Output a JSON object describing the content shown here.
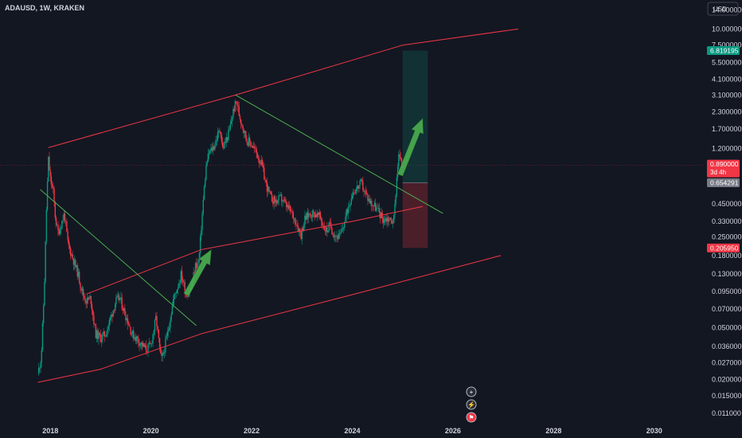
{
  "header": {
    "symbol_line": "ADAUSD, 1W, KRAKEN",
    "currency_button": "USD"
  },
  "price_axis": {
    "ticks": [
      {
        "label": "14.000000",
        "value": 14.0
      },
      {
        "label": "10.000000",
        "value": 10.0
      },
      {
        "label": "7.500000",
        "value": 7.5
      },
      {
        "label": "5.500000",
        "value": 5.5
      },
      {
        "label": "4.100000",
        "value": 4.1
      },
      {
        "label": "3.100000",
        "value": 3.1
      },
      {
        "label": "2.300000",
        "value": 2.3
      },
      {
        "label": "1.700000",
        "value": 1.7
      },
      {
        "label": "1.200000",
        "value": 1.2
      },
      {
        "label": "0.450000",
        "value": 0.45
      },
      {
        "label": "0.330000",
        "value": 0.33
      },
      {
        "label": "0.250000",
        "value": 0.25
      },
      {
        "label": "0.180000",
        "value": 0.18
      },
      {
        "label": "0.130000",
        "value": 0.13
      },
      {
        "label": "0.095000",
        "value": 0.095
      },
      {
        "label": "0.070000",
        "value": 0.07
      },
      {
        "label": "0.050000",
        "value": 0.05
      },
      {
        "label": "0.036000",
        "value": 0.036
      },
      {
        "label": "0.027000",
        "value": 0.027
      },
      {
        "label": "0.020000",
        "value": 0.02
      },
      {
        "label": "0.015000",
        "value": 0.015
      },
      {
        "label": "0.011000",
        "value": 0.011
      }
    ],
    "tags": [
      {
        "name": "target-price-tag",
        "label": "6.819195",
        "sub": "",
        "color": "#089981",
        "value": 6.819195
      },
      {
        "name": "current-price-tag",
        "label": "0.890000",
        "sub": "3d 4h",
        "color": "#f23645",
        "value": 0.89
      },
      {
        "name": "entry-price-tag",
        "label": "0.654291",
        "sub": "",
        "color": "#787b86",
        "value": 0.654291
      },
      {
        "name": "stop-price-tag",
        "label": "0.205950",
        "sub": "",
        "color": "#f23645",
        "value": 0.20595
      }
    ]
  },
  "time_axis": {
    "ticks": [
      {
        "label": "2018",
        "year": 2018
      },
      {
        "label": "2020",
        "year": 2020
      },
      {
        "label": "2022",
        "year": 2022
      },
      {
        "label": "2024",
        "year": 2024
      },
      {
        "label": "2026",
        "year": 2026
      },
      {
        "label": "2028",
        "year": 2028
      },
      {
        "label": "2030",
        "year": 2030
      }
    ]
  },
  "chart_data": {
    "type": "candlestick",
    "symbol": "ADAUSD",
    "interval": "1W",
    "exchange": "KRAKEN",
    "y_scale": "log",
    "x_range": [
      2017.0,
      2031.0
    ],
    "y_range": [
      0.0094,
      16.7
    ],
    "up_color": "#089981",
    "down_color": "#f23645",
    "close_path": [
      [
        2017.75,
        0.022
      ],
      [
        2017.82,
        0.03
      ],
      [
        2017.88,
        0.1
      ],
      [
        2017.92,
        0.38
      ],
      [
        2017.96,
        1.0
      ],
      [
        2018.0,
        0.7
      ],
      [
        2018.06,
        0.55
      ],
      [
        2018.1,
        0.35
      ],
      [
        2018.15,
        0.27
      ],
      [
        2018.2,
        0.3
      ],
      [
        2018.28,
        0.38
      ],
      [
        2018.35,
        0.22
      ],
      [
        2018.45,
        0.17
      ],
      [
        2018.55,
        0.13
      ],
      [
        2018.65,
        0.09
      ],
      [
        2018.72,
        0.08
      ],
      [
        2018.8,
        0.085
      ],
      [
        2018.9,
        0.045
      ],
      [
        2019.0,
        0.042
      ],
      [
        2019.1,
        0.045
      ],
      [
        2019.2,
        0.06
      ],
      [
        2019.3,
        0.08
      ],
      [
        2019.38,
        0.085
      ],
      [
        2019.45,
        0.07
      ],
      [
        2019.55,
        0.055
      ],
      [
        2019.62,
        0.045
      ],
      [
        2019.7,
        0.042
      ],
      [
        2019.8,
        0.038
      ],
      [
        2019.9,
        0.034
      ],
      [
        2020.0,
        0.037
      ],
      [
        2020.1,
        0.06
      ],
      [
        2020.2,
        0.028
      ],
      [
        2020.25,
        0.032
      ],
      [
        2020.35,
        0.05
      ],
      [
        2020.45,
        0.085
      ],
      [
        2020.55,
        0.11
      ],
      [
        2020.6,
        0.13
      ],
      [
        2020.7,
        0.09
      ],
      [
        2020.8,
        0.1
      ],
      [
        2020.88,
        0.15
      ],
      [
        2020.95,
        0.16
      ],
      [
        2021.0,
        0.3
      ],
      [
        2021.05,
        0.55
      ],
      [
        2021.1,
        0.9
      ],
      [
        2021.15,
        1.1
      ],
      [
        2021.25,
        1.25
      ],
      [
        2021.32,
        1.5
      ],
      [
        2021.38,
        1.7
      ],
      [
        2021.42,
        1.2
      ],
      [
        2021.48,
        1.35
      ],
      [
        2021.55,
        1.6
      ],
      [
        2021.63,
        2.3
      ],
      [
        2021.7,
        2.8
      ],
      [
        2021.75,
        2.2
      ],
      [
        2021.82,
        1.8
      ],
      [
        2021.9,
        1.4
      ],
      [
        2022.0,
        1.3
      ],
      [
        2022.1,
        1.1
      ],
      [
        2022.2,
        0.9
      ],
      [
        2022.28,
        0.65
      ],
      [
        2022.38,
        0.5
      ],
      [
        2022.48,
        0.47
      ],
      [
        2022.58,
        0.5
      ],
      [
        2022.68,
        0.44
      ],
      [
        2022.78,
        0.39
      ],
      [
        2022.88,
        0.33
      ],
      [
        2022.98,
        0.26
      ],
      [
        2023.05,
        0.34
      ],
      [
        2023.15,
        0.38
      ],
      [
        2023.25,
        0.38
      ],
      [
        2023.35,
        0.36
      ],
      [
        2023.45,
        0.29
      ],
      [
        2023.5,
        0.28
      ],
      [
        2023.55,
        0.31
      ],
      [
        2023.65,
        0.26
      ],
      [
        2023.75,
        0.25
      ],
      [
        2023.82,
        0.3
      ],
      [
        2023.9,
        0.4
      ],
      [
        2024.0,
        0.55
      ],
      [
        2024.1,
        0.6
      ],
      [
        2024.18,
        0.65
      ],
      [
        2024.25,
        0.55
      ],
      [
        2024.35,
        0.47
      ],
      [
        2024.45,
        0.43
      ],
      [
        2024.55,
        0.38
      ],
      [
        2024.62,
        0.34
      ],
      [
        2024.7,
        0.35
      ],
      [
        2024.78,
        0.33
      ],
      [
        2024.83,
        0.35
      ],
      [
        2024.87,
        0.6
      ],
      [
        2024.9,
        0.9
      ],
      [
        2024.93,
        1.1
      ],
      [
        2024.96,
        0.95
      ],
      [
        2025.0,
        0.89
      ]
    ],
    "drawings": {
      "channel_upper": {
        "color": "#f23645",
        "points": [
          [
            2017.96,
            1.22
          ],
          [
            2021.68,
            3.1
          ],
          [
            2025.0,
            7.5
          ],
          [
            2027.3,
            10.0
          ]
        ]
      },
      "channel_middle": {
        "color": "#f23645",
        "points": [
          [
            2018.72,
            0.091
          ],
          [
            2021.0,
            0.2
          ],
          [
            2024.0,
            0.33
          ],
          [
            2025.4,
            0.43
          ]
        ]
      },
      "channel_lower": {
        "color": "#f23645",
        "points": [
          [
            2017.75,
            0.019
          ],
          [
            2019.0,
            0.024
          ],
          [
            2021.0,
            0.045
          ],
          [
            2024.0,
            0.09
          ],
          [
            2026.95,
            0.18
          ]
        ]
      },
      "downtrend_1": {
        "color": "#4caf50",
        "points": [
          [
            2017.8,
            0.58
          ],
          [
            2020.9,
            0.052
          ]
        ]
      },
      "downtrend_2": {
        "color": "#4caf50",
        "points": [
          [
            2021.68,
            3.1
          ],
          [
            2025.8,
            0.38
          ]
        ]
      },
      "arrows": [
        {
          "name": "arrow-breakout-2020",
          "from": [
            2020.7,
            0.09
          ],
          "to": [
            2021.2,
            0.2
          ],
          "color": "#4caf50"
        },
        {
          "name": "arrow-target-2025",
          "from": [
            2024.95,
            0.75
          ],
          "to": [
            2025.4,
            2.05
          ],
          "color": "#4caf50"
        }
      ],
      "long_position": {
        "start": 2025.0,
        "end": 2025.5,
        "entry": 0.654291,
        "target": 6.819195,
        "stop": 0.20595
      }
    }
  },
  "side_buttons": [
    {
      "name": "add-alert-button",
      "icon": "plus-icon",
      "glyph": "+"
    },
    {
      "name": "lightning-button",
      "icon": "lightning-icon",
      "glyph": "⚡"
    },
    {
      "name": "flag-button",
      "icon": "flag-icon",
      "glyph": "⚑"
    }
  ]
}
